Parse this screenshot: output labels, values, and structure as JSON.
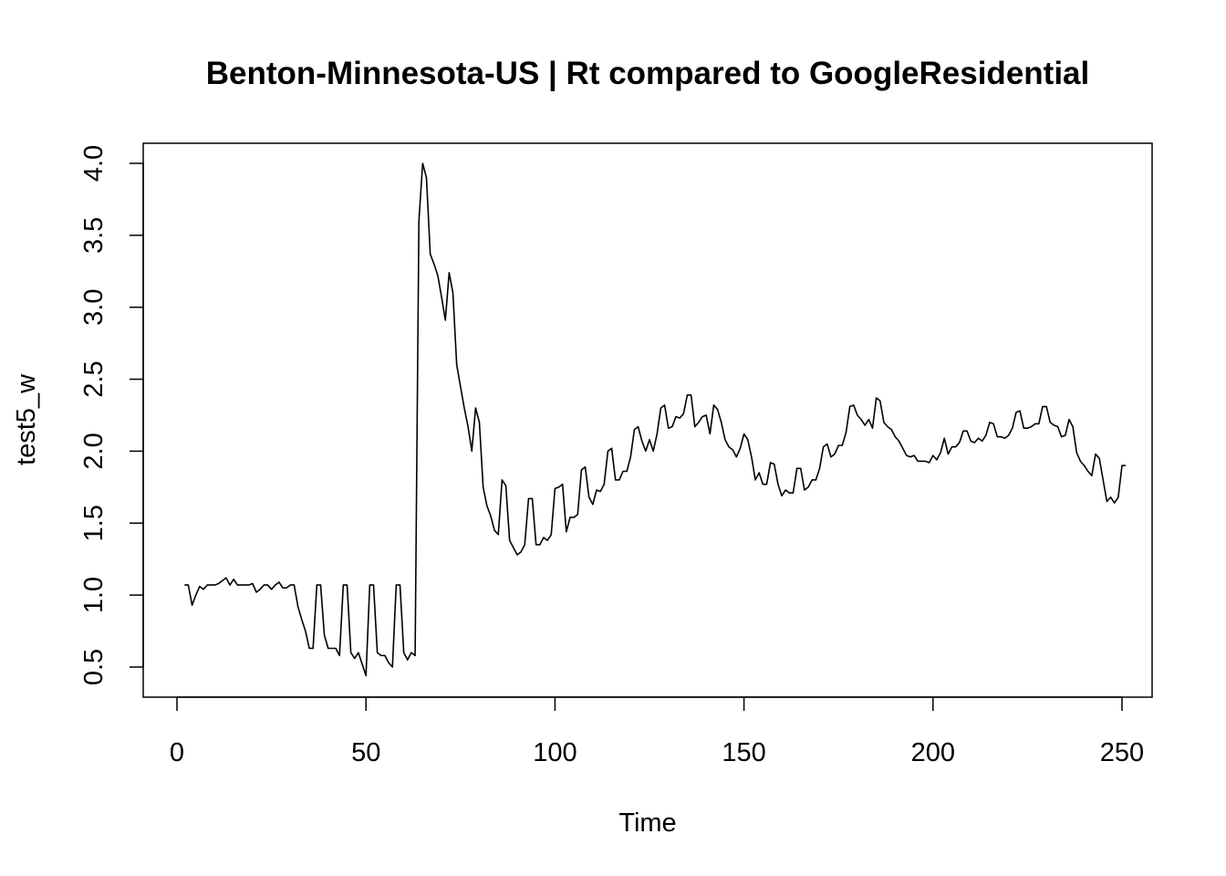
{
  "chart_data": {
    "type": "line",
    "title": "Benton-Minnesota-US | Rt compared to GoogleResidential",
    "xlabel": "Time",
    "ylabel": "test5_w",
    "xlim": [
      1,
      248
    ],
    "ylim": [
      0.43,
      4.0
    ],
    "x_ticks": [
      0,
      50,
      100,
      150,
      200,
      250
    ],
    "x_tick_labels": [
      "0",
      "50",
      "100",
      "150",
      "200",
      "250"
    ],
    "y_ticks": [
      0.5,
      1.0,
      1.5,
      2.0,
      2.5,
      3.0,
      3.5,
      4.0
    ],
    "y_tick_labels": [
      "0.5",
      "1.0",
      "1.5",
      "2.0",
      "2.5",
      "3.0",
      "3.5",
      "4.0"
    ],
    "grid": false,
    "legend": "none",
    "line_color": "#000000",
    "x_start": 2,
    "series": [
      {
        "values": [
          1.07,
          1.07,
          0.93,
          1.0,
          1.06,
          1.04,
          1.07,
          1.07,
          1.07,
          1.08,
          1.1,
          1.12,
          1.07,
          1.11,
          1.07,
          1.07,
          1.07,
          1.07,
          1.08,
          1.02,
          1.04,
          1.07,
          1.07,
          1.04,
          1.07,
          1.09,
          1.05,
          1.05,
          1.07,
          1.07,
          0.92,
          0.83,
          0.75,
          0.63,
          0.63,
          1.07,
          1.07,
          0.72,
          0.63,
          0.63,
          0.63,
          0.58,
          1.07,
          1.07,
          0.6,
          0.56,
          0.6,
          0.52,
          0.44,
          1.07,
          1.07,
          0.6,
          0.58,
          0.58,
          0.53,
          0.5,
          1.07,
          1.07,
          0.6,
          0.55,
          0.6,
          0.58,
          3.6,
          4.0,
          3.9,
          3.37,
          3.3,
          3.22,
          3.07,
          2.91,
          3.24,
          3.1,
          2.6,
          2.45,
          2.3,
          2.17,
          2.0,
          2.3,
          2.2,
          1.75,
          1.62,
          1.55,
          1.45,
          1.42,
          1.8,
          1.76,
          1.38,
          1.33,
          1.28,
          1.3,
          1.35,
          1.67,
          1.67,
          1.35,
          1.35,
          1.4,
          1.38,
          1.42,
          1.74,
          1.75,
          1.77,
          1.44,
          1.54,
          1.54,
          1.56,
          1.87,
          1.89,
          1.68,
          1.63,
          1.73,
          1.72,
          1.77,
          2.0,
          2.02,
          1.8,
          1.8,
          1.86,
          1.86,
          1.96,
          2.15,
          2.17,
          2.07,
          2.0,
          2.08,
          2.0,
          2.12,
          2.3,
          2.32,
          2.16,
          2.17,
          2.24,
          2.23,
          2.26,
          2.39,
          2.39,
          2.17,
          2.2,
          2.24,
          2.25,
          2.12,
          2.32,
          2.29,
          2.2,
          2.08,
          2.03,
          2.01,
          1.96,
          2.02,
          2.12,
          2.08,
          1.96,
          1.8,
          1.85,
          1.77,
          1.77,
          1.92,
          1.91,
          1.77,
          1.69,
          1.73,
          1.71,
          1.71,
          1.88,
          1.88,
          1.73,
          1.75,
          1.8,
          1.8,
          1.88,
          2.03,
          2.05,
          1.96,
          1.98,
          2.04,
          2.04,
          2.13,
          2.31,
          2.32,
          2.25,
          2.22,
          2.18,
          2.22,
          2.16,
          2.37,
          2.35,
          2.2,
          2.17,
          2.15,
          2.1,
          2.07,
          2.02,
          1.97,
          1.96,
          1.97,
          1.93,
          1.93,
          1.93,
          1.92,
          1.97,
          1.94,
          1.99,
          2.09,
          1.98,
          2.03,
          2.03,
          2.06,
          2.14,
          2.14,
          2.07,
          2.06,
          2.09,
          2.07,
          2.11,
          2.2,
          2.19,
          2.1,
          2.1,
          2.09,
          2.11,
          2.16,
          2.27,
          2.28,
          2.16,
          2.16,
          2.17,
          2.19,
          2.19,
          2.31,
          2.31,
          2.2,
          2.18,
          2.17,
          2.1,
          2.11,
          2.22,
          2.17,
          1.99,
          1.93,
          1.9,
          1.86,
          1.83,
          1.98,
          1.95,
          1.8,
          1.65,
          1.68,
          1.64,
          1.68,
          1.9,
          1.9
        ]
      }
    ]
  }
}
